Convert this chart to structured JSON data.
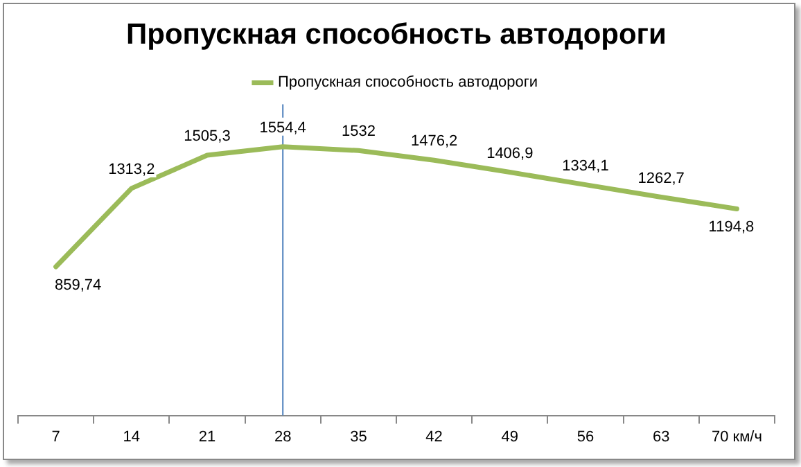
{
  "chart_data": {
    "type": "line",
    "title": "Пропускная способность автодороги",
    "categories": [
      "7",
      "14",
      "21",
      "28",
      "35",
      "42",
      "49",
      "56",
      "63",
      "70 км/ч"
    ],
    "series": [
      {
        "name": "Пропускная способность автодороги",
        "color": "#9bbb59",
        "values": [
          859.74,
          1313.2,
          1505.3,
          1554.4,
          1532,
          1476.2,
          1406.9,
          1334.1,
          1262.7,
          1194.8
        ],
        "value_labels": [
          "859,74",
          "1313,2",
          "1505,3",
          "1554,4",
          "1532",
          "1476,2",
          "1406,9",
          "1334,1",
          "1262,7",
          "1194,8"
        ]
      }
    ],
    "ref_lines": [
      {
        "axis": "x",
        "value": "28",
        "color": "#4f81bd"
      }
    ],
    "legend": "top",
    "grid": false,
    "marker": "none",
    "line_style": "solid",
    "tick_labels": "x"
  }
}
